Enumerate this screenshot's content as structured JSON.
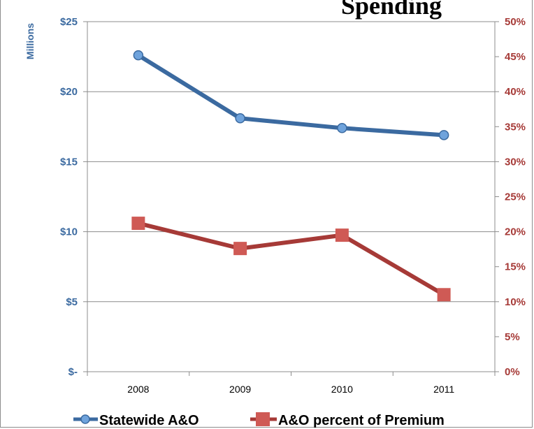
{
  "chart_data": {
    "type": "line",
    "title": "Spending",
    "categories": [
      "2008",
      "2009",
      "2010",
      "2011"
    ],
    "y_left": {
      "label": "Millions",
      "range": [
        0,
        25
      ],
      "ticks": [
        0,
        5,
        10,
        15,
        20,
        25
      ],
      "tick_labels": [
        "$-",
        "$5",
        "$10",
        "$15",
        "$20",
        "$25"
      ]
    },
    "y_right": {
      "range": [
        0,
        50
      ],
      "ticks": [
        0,
        5,
        10,
        15,
        20,
        25,
        30,
        35,
        40,
        45,
        50
      ],
      "tick_labels": [
        "0%",
        "5%",
        "10%",
        "15%",
        "20%",
        "25%",
        "30%",
        "35%",
        "40%",
        "45%",
        "50%"
      ]
    },
    "series": [
      {
        "name": "Statewide A&O",
        "axis": "left",
        "marker": "circle",
        "color": "#3b6aa0",
        "marker_color": "#6fa3dc",
        "values": [
          22.6,
          18.1,
          17.4,
          16.9
        ]
      },
      {
        "name": "A&O percent of Premium",
        "axis": "right",
        "marker": "square",
        "color": "#a63a37",
        "marker_color": "#cf5a55",
        "values": [
          21.2,
          17.6,
          19.5,
          11.0
        ]
      }
    ],
    "grid": true,
    "legend": "bottom"
  }
}
